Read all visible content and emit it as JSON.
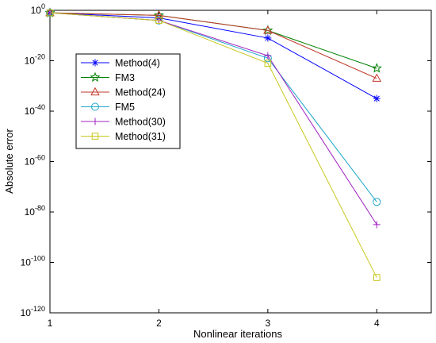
{
  "chart_data": {
    "type": "line",
    "title": "",
    "xlabel": "Nonlinear iterations",
    "ylabel": "Absolute error",
    "x": [
      1,
      2,
      3,
      4
    ],
    "xlim": [
      1,
      4.5
    ],
    "x_ticks": [
      1,
      2,
      3,
      4
    ],
    "y_scale": "log",
    "ylim_exponent": [
      -120,
      0
    ],
    "y_tick_base": "10",
    "y_tick_exponents": [
      "0",
      "-20",
      "-40",
      "-60",
      "-80",
      "-100",
      "-120"
    ],
    "grid": false,
    "legend_position": "top-left",
    "series": [
      {
        "name": "Method(4)",
        "color": "#0000ff",
        "marker": "asterisk",
        "log10_values": [
          -1,
          -3,
          -11,
          -35
        ]
      },
      {
        "name": "FM3",
        "color": "#008000",
        "marker": "star",
        "log10_values": [
          -1,
          -2,
          -8,
          -23
        ]
      },
      {
        "name": "Method(24)",
        "color": "#c0392b",
        "marker": "triangle",
        "log10_values": [
          -1,
          -2,
          -8,
          -27
        ]
      },
      {
        "name": "FM5",
        "color": "#1fa7c9",
        "marker": "circle",
        "log10_values": [
          -1,
          -4,
          -19,
          -76
        ]
      },
      {
        "name": "Method(30)",
        "color": "#a020c0",
        "marker": "plus",
        "log10_values": [
          -1,
          -4,
          -18,
          -85
        ]
      },
      {
        "name": "Method(31)",
        "color": "#c8c820",
        "marker": "square",
        "log10_values": [
          -1,
          -4,
          -21,
          -106
        ]
      }
    ]
  }
}
